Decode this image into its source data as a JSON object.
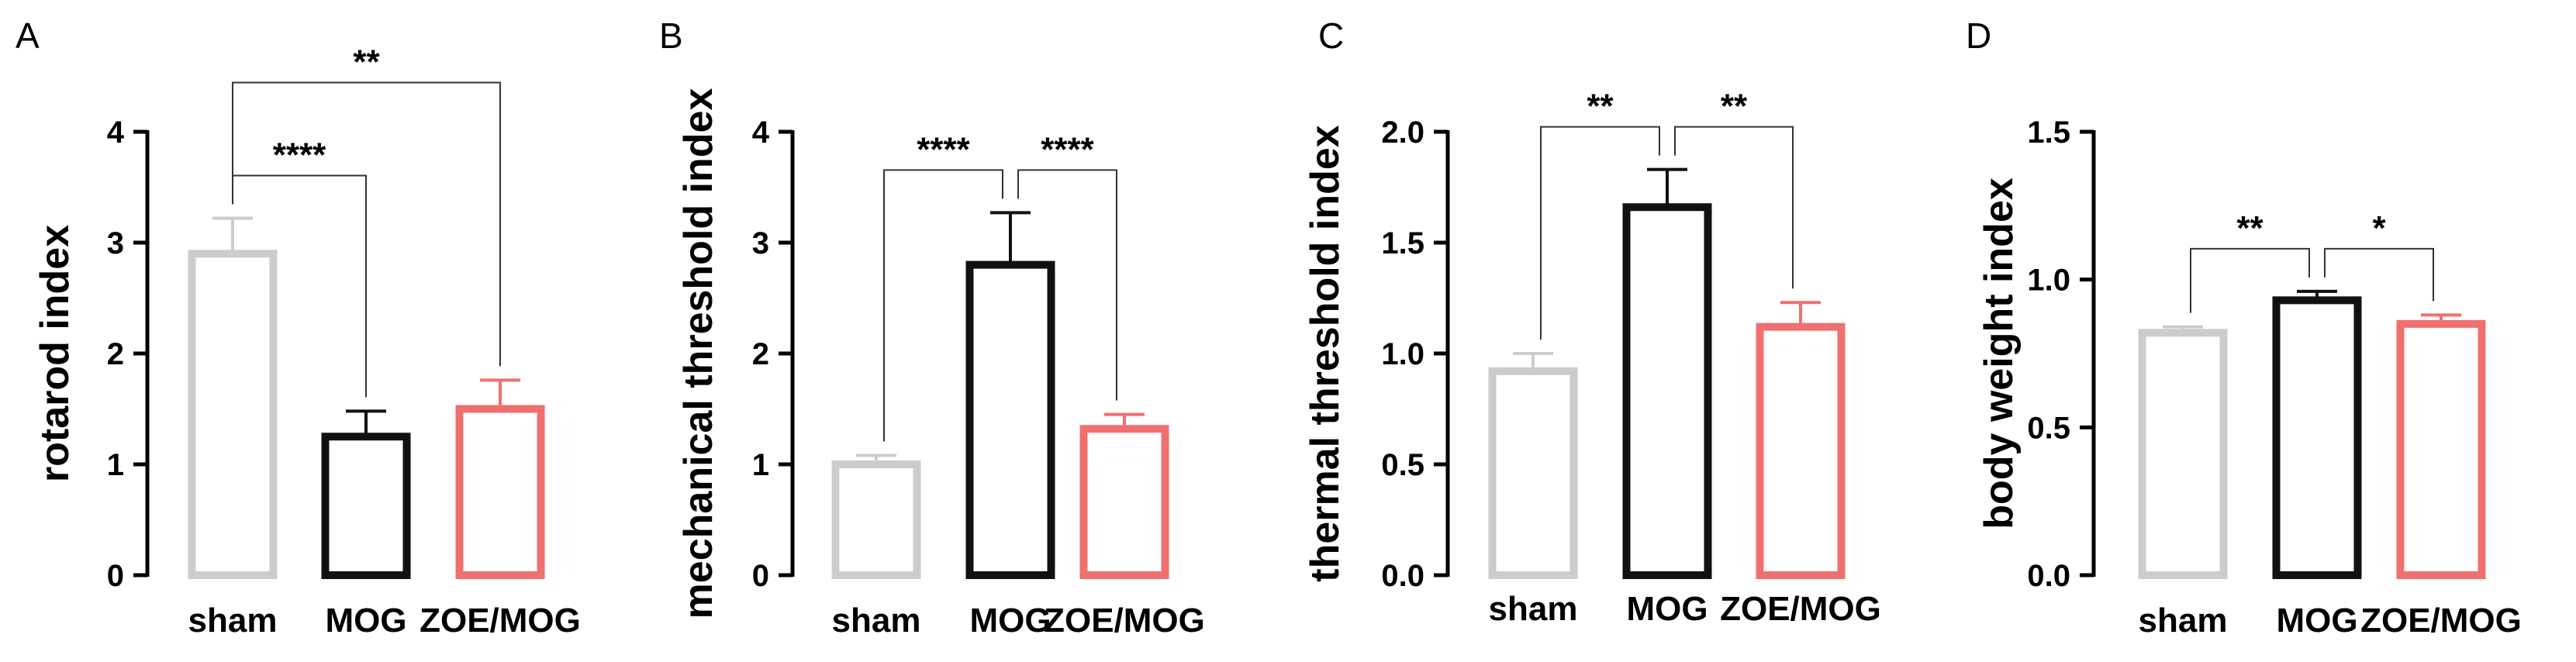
{
  "chart_data": [
    {
      "panel": "A",
      "type": "bar",
      "title": "",
      "xlabel": "",
      "ylabel": "rotarod index",
      "ylim": [
        0,
        4
      ],
      "yticks": [
        0,
        1,
        2,
        3,
        4
      ],
      "ytick_labels": [
        "0",
        "1",
        "2",
        "3",
        "4"
      ],
      "grid": false,
      "categories": [
        "sham",
        "MOG",
        "ZOE/MOG"
      ],
      "values": [
        2.9,
        1.25,
        1.5
      ],
      "errors": [
        0.32,
        0.23,
        0.26
      ],
      "colors": [
        "#cccccc",
        "#111111",
        "#f07070"
      ],
      "comparisons": [
        {
          "from": 0,
          "to": 1,
          "label": "****"
        },
        {
          "from": 0,
          "to": 2,
          "label": "**"
        }
      ]
    },
    {
      "panel": "B",
      "type": "bar",
      "title": "",
      "xlabel": "",
      "ylabel": "mechanical threshold index",
      "ylim": [
        0,
        4
      ],
      "yticks": [
        0,
        1,
        2,
        3,
        4
      ],
      "ytick_labels": [
        "0",
        "1",
        "2",
        "3",
        "4"
      ],
      "grid": false,
      "categories": [
        "sham",
        "MOG",
        "ZOE/MOG"
      ],
      "values": [
        1.0,
        2.8,
        1.32
      ],
      "errors": [
        0.08,
        0.47,
        0.13
      ],
      "colors": [
        "#cccccc",
        "#111111",
        "#f07070"
      ],
      "comparisons": [
        {
          "from": 0,
          "to": 1,
          "label": "****"
        },
        {
          "from": 1,
          "to": 2,
          "label": "****"
        }
      ]
    },
    {
      "panel": "C",
      "type": "bar",
      "title": "",
      "xlabel": "",
      "ylabel": "thermal threshold index",
      "ylim": [
        0,
        2.0
      ],
      "yticks": [
        0,
        0.5,
        1.0,
        1.5,
        2.0
      ],
      "ytick_labels": [
        "0.0",
        "0.5",
        "1.0",
        "1.5",
        "2.0"
      ],
      "grid": false,
      "categories": [
        "sham",
        "MOG",
        "ZOE/MOG"
      ],
      "values": [
        0.92,
        1.66,
        1.12
      ],
      "errors": [
        0.08,
        0.17,
        0.11
      ],
      "colors": [
        "#cccccc",
        "#111111",
        "#f07070"
      ],
      "comparisons": [
        {
          "from": 0,
          "to": 1,
          "label": "**"
        },
        {
          "from": 1,
          "to": 2,
          "label": "**"
        }
      ]
    },
    {
      "panel": "D",
      "type": "bar",
      "title": "",
      "xlabel": "",
      "ylabel": "body weight index",
      "ylim": [
        0,
        1.5
      ],
      "yticks": [
        0,
        0.5,
        1.0,
        1.5
      ],
      "ytick_labels": [
        "0.0",
        "0.5",
        "1.0",
        "1.5"
      ],
      "grid": false,
      "categories": [
        "sham",
        "MOG",
        "ZOE/MOG"
      ],
      "values": [
        0.82,
        0.93,
        0.85
      ],
      "errors": [
        0.02,
        0.03,
        0.03
      ],
      "colors": [
        "#cccccc",
        "#111111",
        "#f07070"
      ],
      "comparisons": [
        {
          "from": 0,
          "to": 1,
          "label": "**"
        },
        {
          "from": 1,
          "to": 2,
          "label": "*"
        }
      ]
    }
  ]
}
